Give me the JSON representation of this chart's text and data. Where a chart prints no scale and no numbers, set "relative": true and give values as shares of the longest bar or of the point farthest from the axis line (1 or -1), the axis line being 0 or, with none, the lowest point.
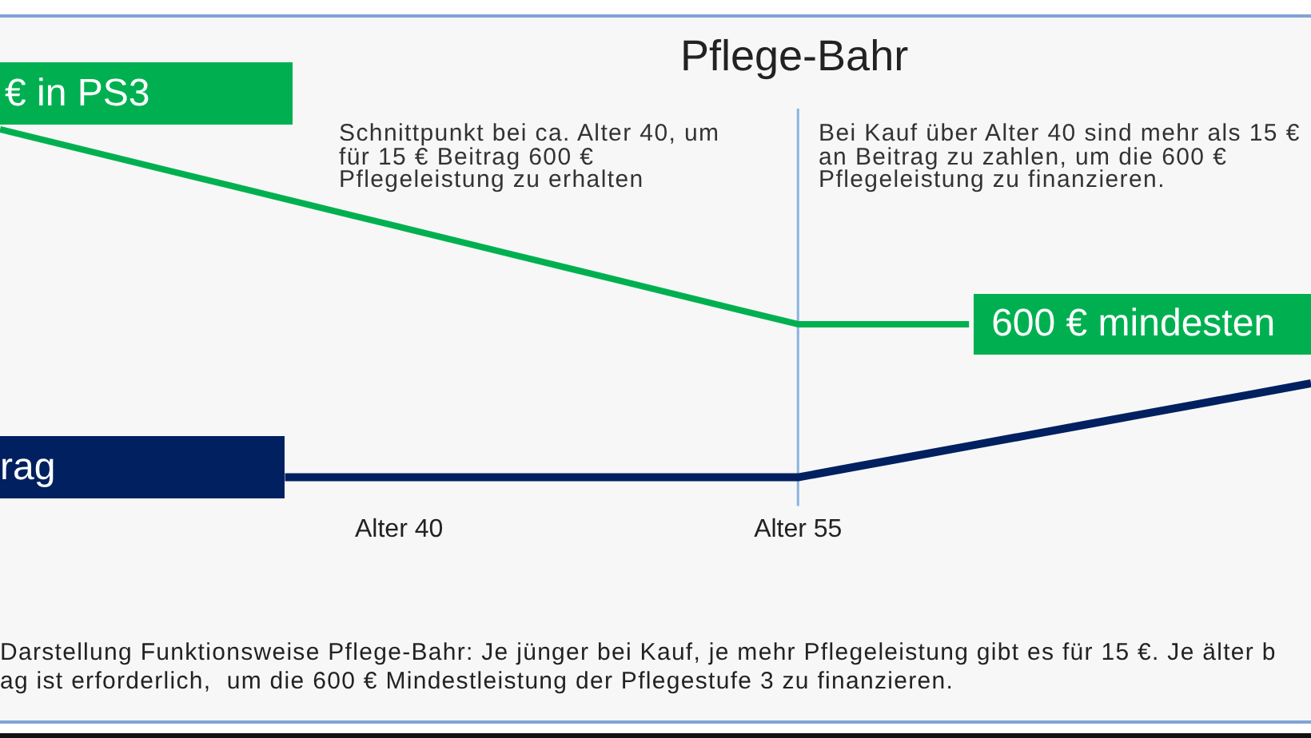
{
  "chart_data": {
    "type": "line",
    "title": "Pflege-Bahr",
    "relative": true,
    "categories": [
      null,
      null,
      null,
      null,
      null,
      null,
      null,
      "Alter 40",
      null,
      null,
      null,
      null,
      null,
      null,
      "Alter 55",
      null,
      null,
      null,
      null,
      null,
      null,
      null,
      null,
      null
    ],
    "series": [
      {
        "name": "€ in PS3",
        "color": "#00b050",
        "values": [
          1,
          0.96,
          0.92,
          0.88,
          0.84,
          0.8,
          0.76,
          0.72,
          0.68,
          0.64,
          0.6,
          0.56,
          0.52,
          0.48,
          0.44,
          0.44,
          0.44,
          0.44,
          null,
          null,
          null,
          null,
          null,
          null
        ]
      },
      {
        "name": "rag",
        "color": "#002060",
        "values": [
          null,
          null,
          null,
          null,
          null,
          0,
          0,
          0,
          0,
          0,
          0,
          0,
          0,
          0,
          0,
          0.03,
          0.06,
          0.09,
          0.12,
          0.15,
          0.18,
          0.21,
          0.24,
          0.27
        ]
      }
    ],
    "ref_lines": [
      {
        "axis": "x",
        "value": "Alter 55",
        "color": "#8db3e2"
      }
    ],
    "annotations": [
      "600 € mindesten",
      "Schnittpunkt bei ca. Alter 40, um\nfür 15 € Beitrag 600 €\nPflegeleistung zu erhalten",
      "Bei Kauf über Alter 40 sind mehr als 15 €\nan Beitrag zu zahlen, um die 600 €\nPflegeleistung zu finanzieren.",
      "Darstellung Funktionsweise Pflege-Bahr: Je jünger bei Kauf, je mehr Pflegeleistung gibt es für 15 €. Je älter b\nag ist erforderlich,  um die 600 € Mindestleistung der Pflegestufe 3 zu finanzieren."
    ],
    "marker": "none",
    "line_style": "solid"
  }
}
